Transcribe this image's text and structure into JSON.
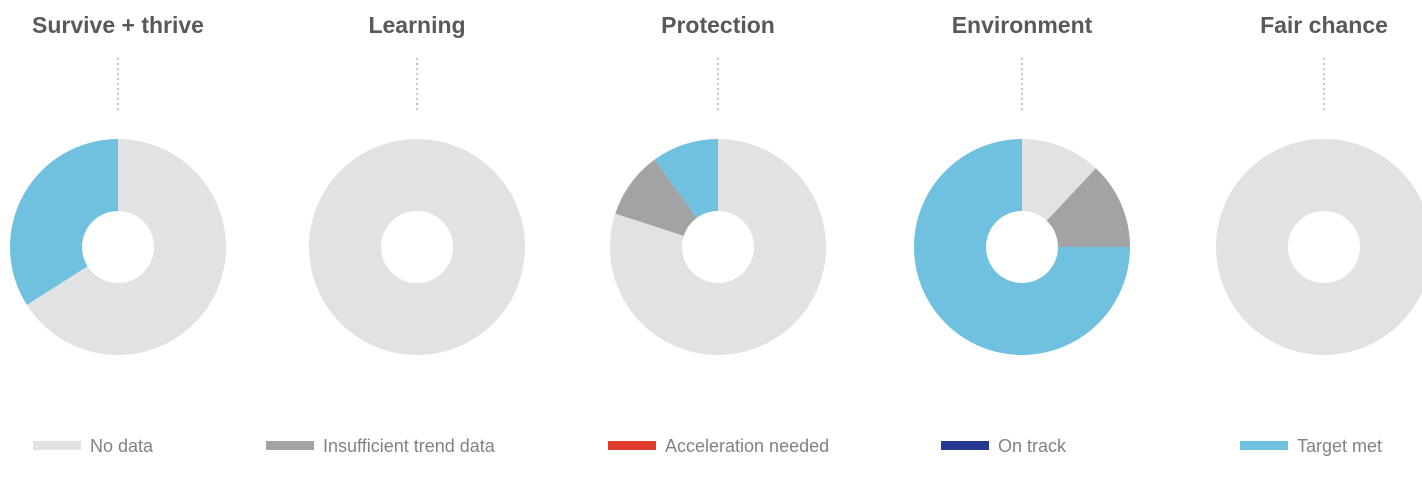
{
  "chart_data": {
    "type": "pie",
    "donut": true,
    "status_categories": [
      "No data",
      "Insufficient trend data",
      "Acceleration needed",
      "On track",
      "Target met"
    ],
    "colors": {
      "No data": "#e1e2e4",
      "Insufficient trend data": "#a2a3a5",
      "Acceleration needed": "#e03c2d",
      "On track": "#24398f",
      "Target met": "#6fc1df"
    },
    "charts": [
      {
        "title": "Survive + thrive",
        "slices": [
          {
            "category": "No data",
            "value": 66
          },
          {
            "category": "Target met",
            "value": 34
          }
        ]
      },
      {
        "title": "Learning",
        "slices": [
          {
            "category": "No data",
            "value": 100
          }
        ]
      },
      {
        "title": "Protection",
        "slices": [
          {
            "category": "No data",
            "value": 80
          },
          {
            "category": "Insufficient trend data",
            "value": 10
          },
          {
            "category": "Target met",
            "value": 10
          }
        ]
      },
      {
        "title": "Environment",
        "slices": [
          {
            "category": "No data",
            "value": 12
          },
          {
            "category": "Insufficient trend data",
            "value": 13
          },
          {
            "category": "Target met",
            "value": 75
          }
        ]
      },
      {
        "title": "Fair chance",
        "slices": [
          {
            "category": "No data",
            "value": 100
          }
        ]
      }
    ],
    "legend": [
      "No data",
      "Insufficient trend data",
      "Acceleration needed",
      "On track",
      "Target met"
    ],
    "legend_position": "bottom"
  }
}
